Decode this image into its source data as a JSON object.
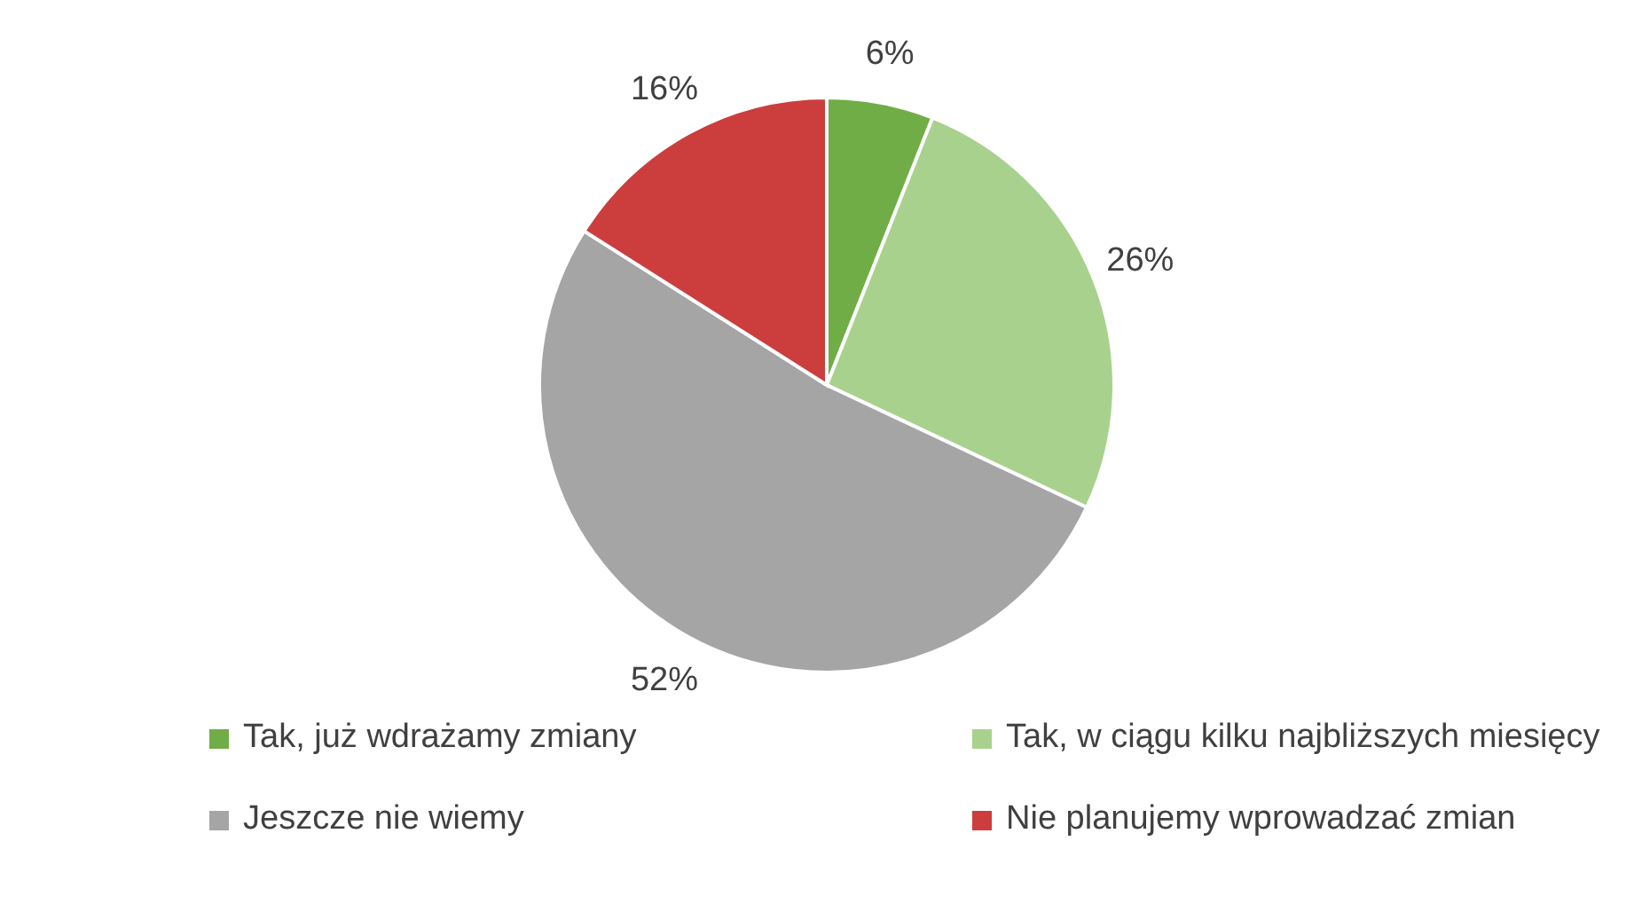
{
  "chart_data": {
    "type": "pie",
    "categories": [
      "Tak, już wdrażamy zmiany",
      "Tak, w ciągu kilku najbliższych miesięcy",
      "Jeszcze nie wiemy",
      "Nie planujemy wprowadzać zmian"
    ],
    "values": [
      6,
      26,
      52,
      16
    ],
    "colors": [
      "#70ad47",
      "#a9d18e",
      "#a5a5a5",
      "#cc3d3d"
    ],
    "value_labels": [
      "6%",
      "26%",
      "52%",
      "16%"
    ],
    "legend": "bottom"
  }
}
